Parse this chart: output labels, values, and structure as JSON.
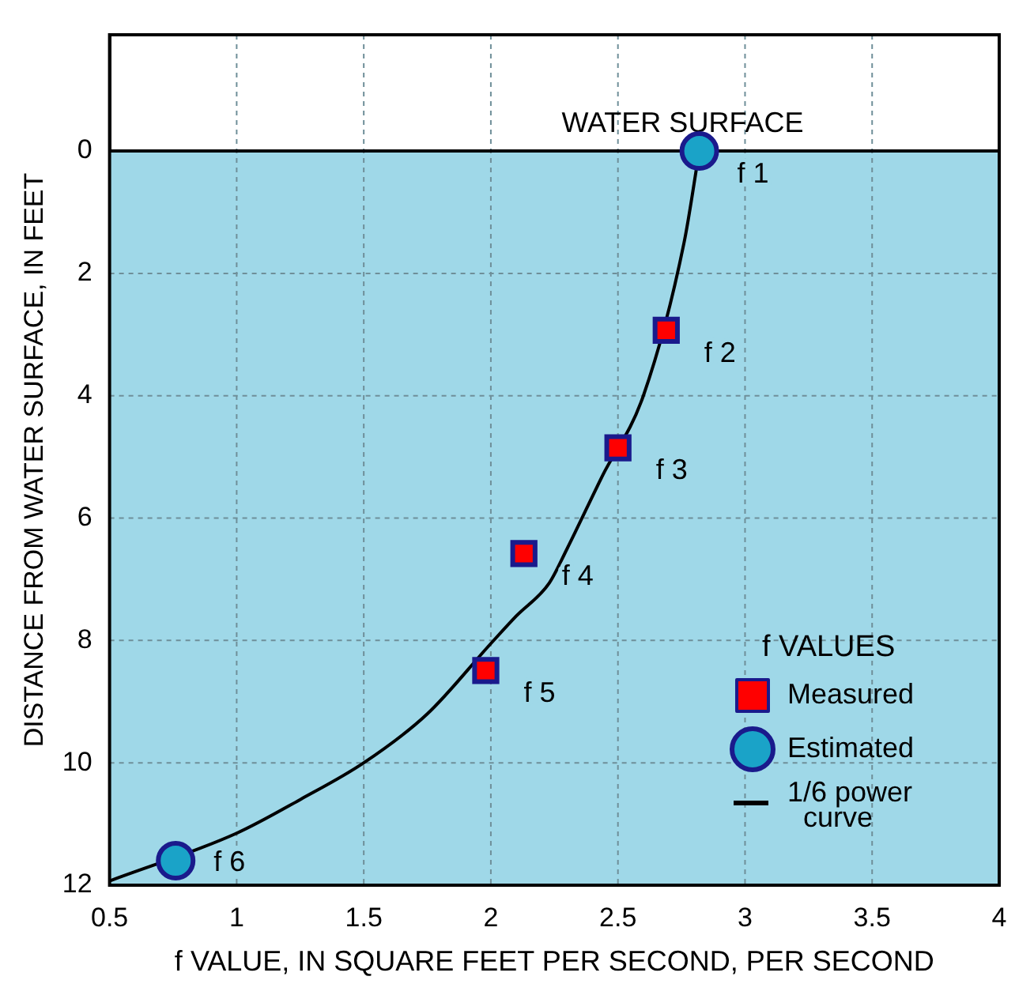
{
  "chart_data": {
    "type": "scatter",
    "xlabel": "f VALUE, IN SQUARE FEET PER SECOND, PER SECOND",
    "ylabel": "DISTANCE FROM WATER SURFACE, IN FEET",
    "legend_title": "f VALUES",
    "xlim": [
      0.5,
      4
    ],
    "xticks": [
      0.5,
      1,
      1.5,
      2,
      2.5,
      3,
      3.5,
      4
    ],
    "ylim": [
      12,
      -1.9
    ],
    "yticks": [
      0,
      2,
      4,
      6,
      8,
      10,
      12
    ],
    "series": [
      {
        "name": "Measured",
        "type": "scatter",
        "marker": "square",
        "color": "#ff0000",
        "x": [
          2.69,
          2.5,
          2.13,
          1.98
        ],
        "values": [
          2.93,
          4.85,
          6.58,
          8.49
        ]
      },
      {
        "name": "Estimated",
        "type": "scatter",
        "marker": "circle",
        "color": "#1aa3c8",
        "x": [
          2.82,
          0.76
        ],
        "values": [
          0,
          11.6
        ]
      },
      {
        "name": "1/6 power curve",
        "type": "line",
        "marker": "none",
        "line_style": "solid",
        "color": "#000000",
        "x": [
          2.82,
          2.76,
          2.6,
          2.44,
          2.3,
          2.23,
          2.1,
          2.0,
          1.75,
          1.5,
          1.25,
          1.0,
          0.5
        ],
        "values": [
          0,
          1.5,
          4.0,
          5.3,
          6.5,
          7.06,
          7.6,
          8.05,
          9.2,
          10.0,
          10.6,
          11.15,
          11.93
        ]
      }
    ],
    "annotations": [
      {
        "text": "f 1",
        "x": 2.82,
        "y": 0
      },
      {
        "text": "f 2",
        "x": 2.69,
        "y": 2.93
      },
      {
        "text": "f 3",
        "x": 2.5,
        "y": 4.85
      },
      {
        "text": "f 4",
        "x": 2.13,
        "y": 6.58
      },
      {
        "text": "f 5",
        "x": 1.98,
        "y": 8.49
      },
      {
        "text": "f 6",
        "x": 0.76,
        "y": 11.6
      }
    ],
    "ref_lines": [
      {
        "axis": "y",
        "value": 0,
        "label": "WATER SURFACE",
        "color": "#000000"
      }
    ],
    "bands": [
      {
        "axis": "y",
        "from": 0,
        "to": 12,
        "color": "#9fd8e8"
      }
    ],
    "grid": true,
    "legend": "bottom right"
  }
}
